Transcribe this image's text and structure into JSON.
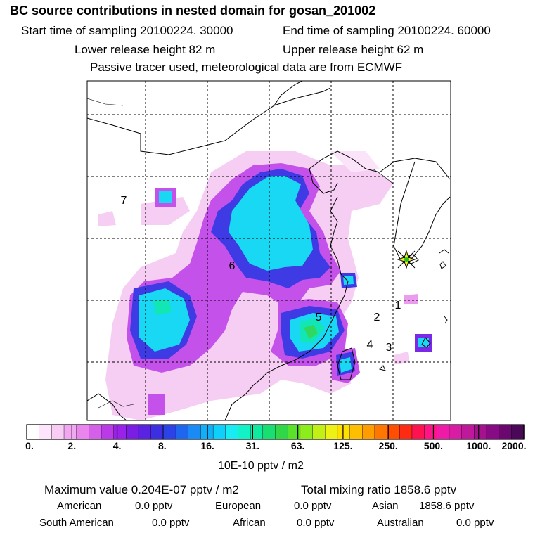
{
  "header": {
    "title": "BC  source contributions in nested domain for gosan_201002",
    "start_time": "Start time of sampling 20100224. 30000",
    "end_time": "End time of sampling 20100224. 60000",
    "lower_release": "Lower release height   82 m",
    "upper_release": "Upper release height   62 m",
    "tracer_note": "Passive tracer used, meteorological data are from ECMWF"
  },
  "chart_data": {
    "type": "heatmap",
    "title": "BC  source contributions in nested domain for gosan_201002",
    "region_labels": [
      "1",
      "2",
      "3",
      "4",
      "5",
      "6",
      "7"
    ],
    "receptor_marker": "gosan",
    "colorbar": {
      "ticks": [
        "0.",
        "2.",
        "4.",
        "8.",
        "16.",
        "31.",
        "63.",
        "125.",
        "250.",
        "500.",
        "1000.",
        "2000."
      ],
      "colors": [
        "#ffffff",
        "#fde6fb",
        "#f8ccf5",
        "#f2a8f0",
        "#e985ec",
        "#d55fe8",
        "#bb3ae8",
        "#9a22e8",
        "#7a1ee6",
        "#5a23e4",
        "#3e2ee2",
        "#2a42e6",
        "#1f66ee",
        "#1a8af4",
        "#12aef8",
        "#0fd0fa",
        "#18ecf2",
        "#12f2c8",
        "#10eaa0",
        "#18e070",
        "#30d848",
        "#58e22a",
        "#8cec1c",
        "#c2f016",
        "#eef214",
        "#ffe000",
        "#ffbe00",
        "#ff9c00",
        "#ff7600",
        "#ff4e00",
        "#ff2a14",
        "#ff1250",
        "#ff1488",
        "#f01aa8",
        "#d81ca4",
        "#c0189a",
        "#a41290",
        "#880a84",
        "#6a0870",
        "#4c0858"
      ],
      "units": "10E-10 pptv / m2"
    },
    "ylim": [
      0,
      2000
    ]
  },
  "footer": {
    "max_value": "Maximum value  0.204E-07 pptv / m2",
    "total_mixing": "Total mixing ratio     1858.6 pptv",
    "american_label": "American",
    "american_value": "0.0 pptv",
    "european_label": "European",
    "european_value": "0.0 pptv",
    "asian_label": "Asian",
    "asian_value": "1858.6 pptv",
    "south_american_label": "South American",
    "south_american_value": "0.0 pptv",
    "african_label": "African",
    "african_value": "0.0 pptv",
    "australian_label": "Australian",
    "australian_value": "0.0 pptv"
  }
}
